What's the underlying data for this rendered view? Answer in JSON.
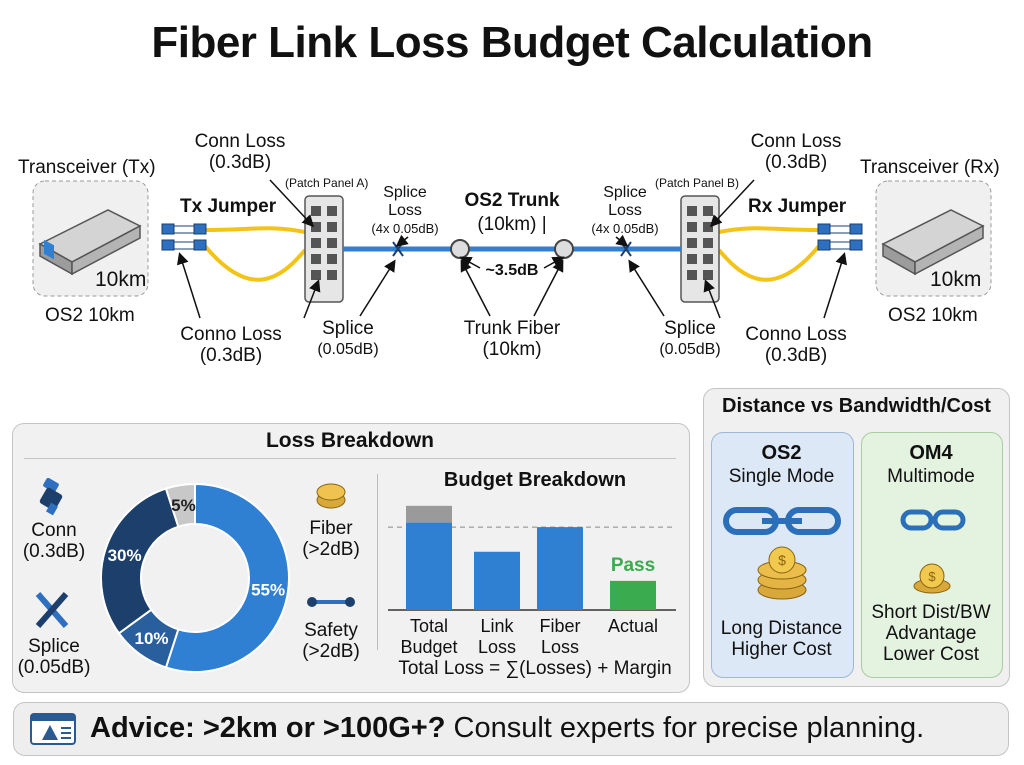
{
  "title": "Fiber Link Loss Budget Calculation",
  "link": {
    "tx_transceiver": {
      "label": "Transceiver (Tx)",
      "badge": "10km",
      "caption": "OS2 10km"
    },
    "rx_transceiver": {
      "label": "Transceiver (Rx)",
      "badge": "10km",
      "caption": "OS2 10km"
    },
    "tx_jumper": "Tx Jumper",
    "rx_jumper": "Rx Jumper",
    "conn_loss_left": [
      "Conn Loss",
      "(0.3dB)"
    ],
    "conn_loss_right": [
      "Conn Loss",
      "(0.3dB)"
    ],
    "conno_loss_left": [
      "Conno Loss",
      "(0.3dB)"
    ],
    "conno_loss_right": [
      "Conno Loss",
      "(0.3dB)"
    ],
    "patch_panel_a": "(Patch Panel A)",
    "patch_panel_b": "(Patch Panel B)",
    "splice_loss_left": [
      "Splice",
      "Loss",
      "(4x 0.05dB)"
    ],
    "splice_loss_right": [
      "Splice",
      "Loss",
      "(4x 0.05dB)"
    ],
    "trunk_title": "OS2 Trunk",
    "trunk_sub": "(10km) |",
    "trunk_loss": "~3.5dB",
    "splice_left": [
      "Splice",
      "(0.05dB)"
    ],
    "splice_right": [
      "Splice",
      "(0.05dB)"
    ],
    "trunk_fiber": [
      "Trunk Fiber",
      "(10km)"
    ]
  },
  "loss_breakdown": {
    "title": "Loss Breakdown",
    "legend": {
      "conn": [
        "Conn",
        "(0.3dB)"
      ],
      "splice": [
        "Splice",
        "(0.05dB)"
      ],
      "fiber": [
        "Fiber",
        "(>2dB)"
      ],
      "safety": [
        "Safety",
        "(>2dB)"
      ]
    }
  },
  "chart_data": [
    {
      "type": "pie",
      "title": "Loss Breakdown",
      "slices": [
        {
          "label": "55%",
          "value": 55,
          "color": "#2f7fd3"
        },
        {
          "label": "10%",
          "value": 10,
          "color": "#2a5f9e"
        },
        {
          "label": "30%",
          "value": 30,
          "color": "#1d3f6b"
        },
        {
          "label": "5%",
          "value": 5,
          "color": "#c8c8c8"
        }
      ]
    },
    {
      "type": "bar",
      "title": "Budget Breakdown",
      "categories": [
        "Total Budget",
        "Link Loss",
        "Fiber Loss",
        "Actual"
      ],
      "category_lines": [
        [
          "Total",
          "Budget"
        ],
        [
          "Link",
          "Loss"
        ],
        [
          "Fiber",
          "Loss"
        ],
        [
          "Actual"
        ]
      ],
      "values": [
        0.78,
        0.52,
        0.74,
        0.26
      ],
      "total_budget_margin_top": 0.93,
      "reference_line": 0.74,
      "colors": [
        "#2f7fd3",
        "#2f7fd3",
        "#2f7fd3",
        "#3bab4f"
      ],
      "margin_color": "#9a9a9a",
      "annotation": "Pass",
      "formula": "Total Loss = ∑(Losses) + Margin"
    }
  ],
  "comparison": {
    "title": "Distance vs Bandwidth/Cost",
    "os2": {
      "name": "OS2",
      "mode": "Single Mode",
      "lines": [
        "Long Distance",
        "Higher Cost"
      ]
    },
    "om4": {
      "name": "OM4",
      "mode": "Multimode",
      "lines": [
        "Short Dist/BW",
        "Advantage",
        "Lower Cost"
      ]
    }
  },
  "advice": {
    "bold": "Advice: >2km or >100G+?",
    "rest": " Consult experts for precise planning."
  },
  "colors": {
    "fiber_yellow": "#f2c318",
    "trunk_blue": "#2f7fd3",
    "os2_bg": "#dce8f6",
    "om4_bg": "#e4f2e0"
  }
}
